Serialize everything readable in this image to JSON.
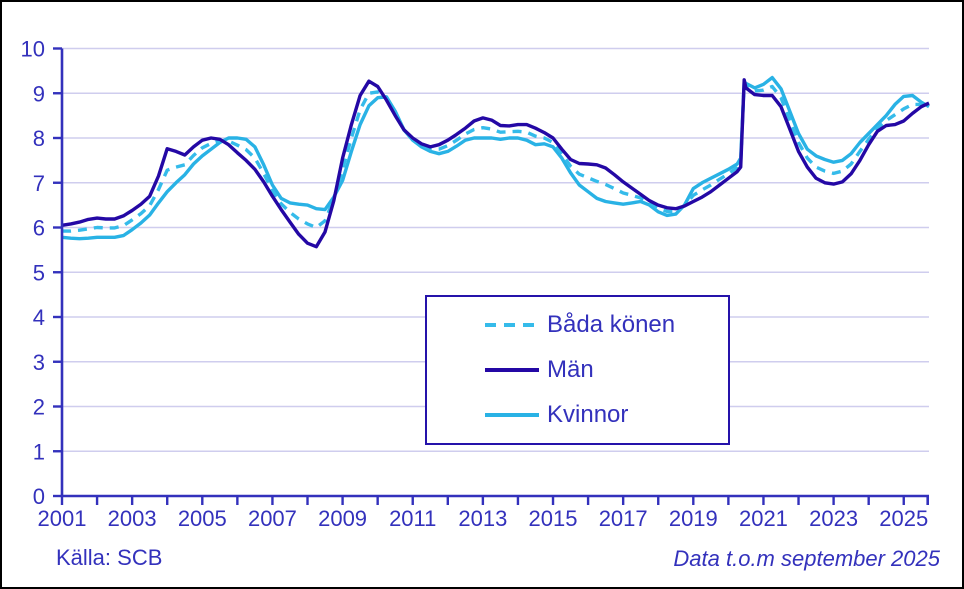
{
  "footer": {
    "source": "Källa: SCB",
    "asof": "Data t.o.m september 2025"
  },
  "legend": {
    "items": [
      {
        "label": "Båda könen",
        "style": "dashed-cyan"
      },
      {
        "label": "Män",
        "style": "solid-navy"
      },
      {
        "label": "Kvinnor",
        "style": "solid-cyan"
      }
    ]
  },
  "chart_data": {
    "type": "line",
    "title": "",
    "xlabel": "",
    "ylabel": "",
    "xlim": [
      2001.0,
      2025.72
    ],
    "ylim": [
      0,
      10
    ],
    "grid": "horizontal",
    "legend_position": "center-bottom-box",
    "y_tick_labels": [
      "0",
      "1",
      "2",
      "3",
      "4",
      "5",
      "6",
      "7",
      "8",
      "9",
      "10"
    ],
    "x_tick_years_minor": [
      2001,
      2002,
      2003,
      2004,
      2005,
      2006,
      2007,
      2008,
      2009,
      2010,
      2011,
      2012,
      2013,
      2014,
      2015,
      2016,
      2017,
      2018,
      2019,
      2020,
      2021,
      2022,
      2023,
      2024,
      2025
    ],
    "x_tick_labels": [
      "2001",
      "2003",
      "2005",
      "2007",
      "2009",
      "2011",
      "2013",
      "2015",
      "2017",
      "2019",
      "2021",
      "2023",
      "2025"
    ],
    "x_tick_label_years": [
      2001,
      2003,
      2005,
      2007,
      2009,
      2011,
      2013,
      2015,
      2017,
      2019,
      2021,
      2023,
      2025
    ],
    "colors": {
      "man": "#2408A5",
      "kvinnor": "#29B2E5",
      "bada_konen": "#35BBEA",
      "grid": "#CFCDEE",
      "axis": "#3331BC",
      "text": "#3331BC",
      "frame": "#000000"
    },
    "x": [
      2001.0,
      2001.25,
      2001.5,
      2001.75,
      2002.0,
      2002.25,
      2002.5,
      2002.75,
      2003.0,
      2003.25,
      2003.5,
      2003.75,
      2004.0,
      2004.25,
      2004.5,
      2004.75,
      2005.0,
      2005.25,
      2005.5,
      2005.75,
      2006.0,
      2006.25,
      2006.5,
      2006.75,
      2007.0,
      2007.25,
      2007.5,
      2007.75,
      2008.0,
      2008.25,
      2008.5,
      2008.75,
      2009.0,
      2009.25,
      2009.5,
      2009.75,
      2010.0,
      2010.25,
      2010.5,
      2010.75,
      2011.0,
      2011.25,
      2011.5,
      2011.75,
      2012.0,
      2012.25,
      2012.5,
      2012.75,
      2013.0,
      2013.25,
      2013.5,
      2013.75,
      2014.0,
      2014.25,
      2014.5,
      2014.75,
      2015.0,
      2015.25,
      2015.5,
      2015.75,
      2016.0,
      2016.25,
      2016.5,
      2016.75,
      2017.0,
      2017.25,
      2017.5,
      2017.75,
      2018.0,
      2018.25,
      2018.5,
      2018.75,
      2019.0,
      2019.25,
      2019.5,
      2019.75,
      2020.0,
      2020.25,
      2020.35,
      2020.45,
      2020.5,
      2020.75,
      2021.0,
      2021.25,
      2021.5,
      2021.75,
      2022.0,
      2022.25,
      2022.5,
      2022.75,
      2023.0,
      2023.25,
      2023.5,
      2023.75,
      2024.0,
      2024.25,
      2024.5,
      2024.75,
      2025.0,
      2025.25,
      2025.5,
      2025.72
    ],
    "series": [
      {
        "name": "Båda könen",
        "dash": true,
        "color_key": "bada_konen",
        "values": [
          5.92,
          5.92,
          5.94,
          5.97,
          6.0,
          5.99,
          5.99,
          6.04,
          6.17,
          6.31,
          6.49,
          6.85,
          7.28,
          7.35,
          7.4,
          7.61,
          7.78,
          7.88,
          7.94,
          7.93,
          7.84,
          7.74,
          7.55,
          7.21,
          6.83,
          6.53,
          6.34,
          6.19,
          6.08,
          6.0,
          6.15,
          6.64,
          7.3,
          8.0,
          8.63,
          9.0,
          9.03,
          8.89,
          8.55,
          8.18,
          7.98,
          7.84,
          7.75,
          7.75,
          7.83,
          7.95,
          8.09,
          8.19,
          8.23,
          8.2,
          8.13,
          8.14,
          8.15,
          8.13,
          8.04,
          8.0,
          7.9,
          7.65,
          7.37,
          7.19,
          7.11,
          7.03,
          6.96,
          6.87,
          6.77,
          6.72,
          6.66,
          6.55,
          6.43,
          6.36,
          6.36,
          6.49,
          6.72,
          6.84,
          6.95,
          7.08,
          7.2,
          7.34,
          7.45,
          9.28,
          9.17,
          9.05,
          9.07,
          9.15,
          8.9,
          8.4,
          7.9,
          7.55,
          7.35,
          7.26,
          7.21,
          7.26,
          7.42,
          7.7,
          7.97,
          8.22,
          8.39,
          8.52,
          8.65,
          8.75,
          8.75,
          8.74
        ]
      },
      {
        "name": "Män",
        "dash": false,
        "color_key": "man",
        "values": [
          6.05,
          6.08,
          6.12,
          6.18,
          6.21,
          6.19,
          6.19,
          6.26,
          6.38,
          6.52,
          6.7,
          7.15,
          7.76,
          7.7,
          7.62,
          7.8,
          7.95,
          8.0,
          7.97,
          7.85,
          7.67,
          7.5,
          7.3,
          7.02,
          6.7,
          6.4,
          6.12,
          5.85,
          5.65,
          5.57,
          5.9,
          6.6,
          7.55,
          8.3,
          8.95,
          9.27,
          9.15,
          8.85,
          8.5,
          8.18,
          8.0,
          7.87,
          7.8,
          7.85,
          7.95,
          8.08,
          8.22,
          8.38,
          8.45,
          8.4,
          8.28,
          8.27,
          8.3,
          8.3,
          8.22,
          8.12,
          8.0,
          7.75,
          7.52,
          7.43,
          7.42,
          7.4,
          7.33,
          7.18,
          7.02,
          6.88,
          6.74,
          6.6,
          6.5,
          6.44,
          6.42,
          6.48,
          6.58,
          6.68,
          6.8,
          6.95,
          7.1,
          7.25,
          7.35,
          9.3,
          9.12,
          8.97,
          8.95,
          8.95,
          8.7,
          8.2,
          7.7,
          7.35,
          7.1,
          7.0,
          6.97,
          7.02,
          7.2,
          7.5,
          7.85,
          8.15,
          8.28,
          8.3,
          8.38,
          8.55,
          8.7,
          8.78
        ]
      },
      {
        "name": "Kvinnor",
        "dash": false,
        "color_key": "kvinnor",
        "values": [
          5.78,
          5.76,
          5.75,
          5.76,
          5.78,
          5.78,
          5.78,
          5.82,
          5.95,
          6.1,
          6.28,
          6.55,
          6.8,
          7.0,
          7.18,
          7.42,
          7.6,
          7.75,
          7.9,
          8.0,
          8.0,
          7.97,
          7.8,
          7.4,
          6.95,
          6.65,
          6.55,
          6.52,
          6.5,
          6.42,
          6.4,
          6.68,
          7.05,
          7.7,
          8.3,
          8.72,
          8.9,
          8.92,
          8.6,
          8.18,
          7.95,
          7.8,
          7.7,
          7.65,
          7.7,
          7.82,
          7.95,
          8.0,
          8.0,
          8.0,
          7.97,
          8.0,
          8.0,
          7.95,
          7.85,
          7.87,
          7.8,
          7.55,
          7.22,
          6.95,
          6.8,
          6.65,
          6.58,
          6.55,
          6.52,
          6.55,
          6.58,
          6.5,
          6.35,
          6.27,
          6.3,
          6.5,
          6.87,
          7.0,
          7.1,
          7.2,
          7.3,
          7.42,
          7.55,
          9.25,
          9.22,
          9.12,
          9.2,
          9.35,
          9.1,
          8.6,
          8.1,
          7.75,
          7.6,
          7.52,
          7.46,
          7.5,
          7.65,
          7.9,
          8.1,
          8.3,
          8.5,
          8.75,
          8.93,
          8.95,
          8.8,
          8.7
        ]
      }
    ]
  }
}
